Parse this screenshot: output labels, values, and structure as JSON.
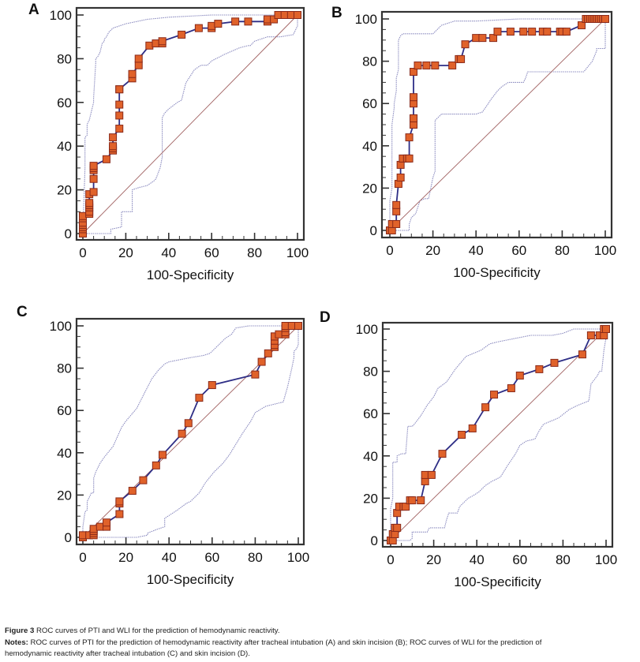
{
  "figure": {
    "caption_label": "Figure 3",
    "caption_title": "ROC curves of PTI and WLI for the prediction of hemodynamic reactivity.",
    "notes_label": "Notes:",
    "notes_line1": "ROC curves of PTI for the prediction of hemodynamic reactivity after tracheal intubation (A) and skin incision (B); ROC curves of WLI for the prediction of",
    "notes_line2": "hemodynamic reactivity after tracheal intubation (C) and skin incision (D)."
  },
  "colors": {
    "roc_line": "#2e2e86",
    "marker_fill": "#e0622a",
    "marker_stroke": "#8a2a1a",
    "ci_line": "#8c8cc0",
    "diagonal": "#a06060",
    "frame": "#333333"
  },
  "chart_data": [
    {
      "panel": "A",
      "type": "line",
      "title": "",
      "xlabel": "100-Specificity",
      "ylabel": "",
      "xlim": [
        0,
        100
      ],
      "ylim": [
        0,
        100
      ],
      "xticks": [
        "0",
        "20",
        "40",
        "60",
        "80",
        "100"
      ],
      "yticks": [
        "0",
        "20",
        "40",
        "60",
        "80",
        "100"
      ],
      "grid": false,
      "series": [
        {
          "name": "ROC",
          "x": [
            0,
            0,
            0,
            0,
            0,
            0,
            0,
            3,
            3,
            3,
            3,
            3,
            3,
            5,
            5,
            5,
            5,
            5,
            11,
            14,
            14,
            14,
            14,
            17,
            17,
            17,
            17,
            17,
            23,
            23,
            26,
            26,
            31,
            34,
            37,
            37,
            46,
            54,
            60,
            60,
            63,
            71,
            77,
            86,
            86,
            89,
            91,
            94,
            97,
            100
          ],
          "y": [
            0,
            2,
            3,
            4,
            5,
            7,
            8,
            9,
            10,
            12,
            13,
            14,
            18,
            19,
            25,
            29,
            30,
            31,
            34,
            38,
            39,
            40,
            44,
            48,
            54,
            59,
            66,
            66,
            71,
            73,
            77,
            80,
            86,
            87,
            87,
            88,
            91,
            94,
            94,
            95,
            96,
            97,
            97,
            97,
            98,
            98,
            100,
            100,
            100,
            100
          ]
        },
        {
          "name": "CI upper",
          "x": [
            0,
            1,
            1,
            2,
            2,
            3,
            4,
            5,
            5,
            6,
            6,
            7,
            8,
            9,
            10,
            10,
            11,
            12,
            14,
            17,
            20,
            25,
            30,
            40,
            60,
            80,
            100
          ],
          "y": [
            0,
            30,
            44,
            45,
            50,
            52,
            56,
            60,
            62,
            78,
            80,
            81,
            83,
            87,
            88,
            89,
            90,
            92,
            94,
            95,
            96,
            97,
            98,
            99,
            100,
            100,
            100
          ]
        },
        {
          "name": "CI lower",
          "x": [
            0,
            13,
            13,
            18,
            18,
            23,
            23,
            26,
            30,
            33,
            34,
            36,
            37,
            37,
            38,
            40,
            44,
            46,
            47,
            48,
            50,
            52,
            55,
            58,
            60,
            66,
            73,
            77,
            78,
            80,
            86,
            92,
            98,
            100,
            100
          ],
          "y": [
            0,
            0,
            2,
            3,
            10,
            10,
            20,
            21,
            22,
            24,
            25,
            30,
            35,
            53,
            55,
            57,
            60,
            61,
            65,
            69,
            72,
            75,
            77,
            77,
            79,
            82,
            85,
            86,
            86,
            88,
            90,
            90,
            91,
            95,
            100
          ]
        },
        {
          "name": "Diagonal",
          "x": [
            0,
            100
          ],
          "y": [
            0,
            100
          ]
        }
      ]
    },
    {
      "panel": "B",
      "type": "line",
      "title": "",
      "xlabel": "100-Specificity",
      "ylabel": "",
      "xlim": [
        0,
        100
      ],
      "ylim": [
        0,
        100
      ],
      "xticks": [
        "0",
        "20",
        "40",
        "60",
        "80",
        "100"
      ],
      "yticks": [
        "0",
        "20",
        "40",
        "60",
        "80",
        "100"
      ],
      "grid": false,
      "series": [
        {
          "name": "ROC",
          "x": [
            0,
            1,
            1,
            3,
            3,
            3,
            4,
            5,
            5,
            6,
            8,
            9,
            9,
            11,
            11,
            11,
            11,
            11,
            11,
            13,
            17,
            21,
            29,
            32,
            33,
            35,
            40,
            43,
            48,
            50,
            56,
            62,
            66,
            71,
            73,
            79,
            80,
            82,
            89,
            91,
            92,
            93,
            94,
            95,
            96,
            97,
            98,
            99,
            100
          ],
          "y": [
            0,
            0,
            3,
            3,
            9,
            12,
            22,
            25,
            31,
            34,
            34,
            34,
            44,
            50,
            53,
            53,
            60,
            63,
            75,
            78,
            78,
            78,
            78,
            81,
            81,
            88,
            91,
            91,
            91,
            94,
            94,
            94,
            94,
            94,
            94,
            94,
            94,
            94,
            97,
            100,
            100,
            100,
            100,
            100,
            100,
            100,
            100,
            100,
            100
          ]
        },
        {
          "name": "CI upper",
          "x": [
            0,
            0,
            1,
            1,
            1,
            2,
            2,
            3,
            3,
            4,
            4,
            5,
            5,
            6,
            9,
            10,
            12,
            14,
            20,
            22,
            24,
            27,
            30,
            35,
            40,
            60,
            80,
            100
          ],
          "y": [
            0,
            14,
            20,
            44,
            50,
            58,
            60,
            66,
            72,
            76,
            90,
            92,
            92,
            93,
            93,
            93,
            93,
            93,
            93,
            95,
            97,
            98,
            99,
            99,
            99,
            100,
            100,
            100
          ]
        },
        {
          "name": "CI lower",
          "x": [
            0,
            9,
            9,
            10,
            11,
            12,
            14,
            16,
            18,
            19,
            20,
            21,
            21,
            24,
            40,
            43,
            45,
            47,
            50,
            52,
            55,
            60,
            62,
            63,
            64,
            66,
            70,
            75,
            78,
            80,
            82,
            90,
            94,
            96,
            96,
            100,
            100
          ],
          "y": [
            0,
            0,
            3,
            6,
            7,
            8,
            14,
            15,
            15,
            20,
            25,
            28,
            52,
            55,
            55,
            56,
            59,
            62,
            66,
            68,
            70,
            70,
            70,
            72,
            75,
            75,
            75,
            75,
            75,
            75,
            75,
            75,
            80,
            85,
            86,
            86,
            100
          ]
        },
        {
          "name": "Diagonal",
          "x": [
            0,
            100
          ],
          "y": [
            0,
            100
          ]
        }
      ]
    },
    {
      "panel": "C",
      "type": "line",
      "title": "",
      "xlabel": "100-Specificity",
      "ylabel": "",
      "xlim": [
        0,
        100
      ],
      "ylim": [
        0,
        100
      ],
      "xticks": [
        "0",
        "20",
        "40",
        "60",
        "80",
        "100"
      ],
      "yticks": [
        "0",
        "20",
        "40",
        "60",
        "80",
        "100"
      ],
      "grid": false,
      "series": [
        {
          "name": "ROC",
          "x": [
            0,
            0,
            3,
            5,
            5,
            5,
            5,
            8,
            11,
            11,
            17,
            17,
            17,
            23,
            28,
            34,
            37,
            46,
            49,
            54,
            60,
            80,
            83,
            86,
            89,
            89,
            89,
            89,
            89,
            91,
            94,
            94,
            94,
            94,
            97,
            100
          ],
          "y": [
            0,
            1,
            1,
            1,
            2,
            3,
            4,
            5,
            5,
            7,
            11,
            16,
            17,
            22,
            27,
            34,
            39,
            49,
            54,
            66,
            72,
            77,
            83,
            87,
            90,
            91,
            93,
            95,
            95,
            96,
            96,
            97,
            99,
            100,
            100,
            100
          ]
        },
        {
          "name": "CI upper",
          "x": [
            0,
            0,
            1,
            2,
            2,
            4,
            5,
            5,
            6,
            8,
            10,
            14,
            18,
            20,
            25,
            28,
            32,
            35,
            38,
            40,
            45,
            50,
            56,
            59,
            62,
            66,
            69,
            71,
            77,
            80,
            90,
            100
          ],
          "y": [
            0,
            5,
            12,
            13,
            17,
            21,
            21,
            28,
            31,
            35,
            38,
            43,
            52,
            55,
            61,
            67,
            75,
            79,
            82,
            83,
            84,
            85,
            86,
            87,
            90,
            94,
            96,
            99,
            100,
            100,
            100,
            100
          ]
        },
        {
          "name": "CI lower",
          "x": [
            0,
            10,
            20,
            25,
            30,
            30,
            35,
            38,
            38,
            44,
            48,
            50,
            54,
            57,
            61,
            65,
            68,
            71,
            74,
            78,
            80,
            85,
            93,
            95,
            97,
            98,
            98,
            99,
            100,
            100
          ],
          "y": [
            0,
            0,
            0,
            0,
            1,
            2,
            4,
            5,
            9,
            13,
            16,
            17,
            21,
            26,
            31,
            35,
            39,
            44,
            49,
            55,
            59,
            62,
            64,
            71,
            80,
            85,
            88,
            89,
            91,
            100
          ]
        },
        {
          "name": "Diagonal",
          "x": [
            0,
            100
          ],
          "y": [
            0,
            100
          ]
        }
      ]
    },
    {
      "panel": "D",
      "type": "line",
      "title": "",
      "xlabel": "100-Specificity",
      "ylabel": "",
      "xlim": [
        0,
        100
      ],
      "ylim": [
        0,
        100
      ],
      "xticks": [
        "0",
        "20",
        "40",
        "60",
        "80",
        "100"
      ],
      "yticks": [
        "0",
        "20",
        "40",
        "60",
        "80",
        "100"
      ],
      "grid": false,
      "series": [
        {
          "name": "ROC",
          "x": [
            0,
            1,
            1,
            2,
            2,
            3,
            3,
            4,
            6,
            7,
            9,
            10,
            14,
            16,
            16,
            19,
            24,
            33,
            38,
            44,
            48,
            56,
            60,
            69,
            76,
            89,
            93,
            97,
            99,
            99,
            100
          ],
          "y": [
            0,
            0,
            3,
            3,
            6,
            6,
            13,
            16,
            16,
            16,
            19,
            19,
            19,
            28,
            31,
            31,
            41,
            50,
            53,
            63,
            69,
            72,
            78,
            81,
            84,
            88,
            97,
            97,
            97,
            100,
            100
          ]
        },
        {
          "name": "CI upper",
          "x": [
            0,
            0,
            1,
            1,
            2,
            3,
            3,
            5,
            7,
            7,
            8,
            10,
            11,
            14,
            17,
            20,
            22,
            26,
            30,
            35,
            42,
            46,
            50,
            55,
            60,
            65,
            70,
            75,
            80,
            85,
            90,
            100
          ],
          "y": [
            0,
            15,
            20,
            37,
            37,
            37,
            40,
            41,
            41,
            41,
            54,
            54,
            55,
            59,
            64,
            68,
            72,
            75,
            81,
            87,
            90,
            93,
            94,
            95,
            96,
            97,
            97,
            97,
            98,
            100,
            100,
            100
          ]
        },
        {
          "name": "CI lower",
          "x": [
            0,
            5,
            9,
            10,
            10,
            17,
            18,
            20,
            22,
            25,
            26,
            27,
            28,
            31,
            32,
            36,
            38,
            41,
            44,
            47,
            51,
            54,
            58,
            60,
            63,
            67,
            69,
            71,
            78,
            83,
            87,
            92,
            93,
            96,
            97,
            98,
            99,
            100,
            100
          ],
          "y": [
            0,
            0,
            0,
            1,
            4,
            4,
            6,
            6,
            6,
            6,
            10,
            13,
            13,
            13,
            16,
            20,
            21,
            23,
            26,
            28,
            30,
            35,
            41,
            45,
            47,
            48,
            52,
            55,
            58,
            62,
            64,
            66,
            74,
            78,
            80,
            80,
            90,
            96,
            100
          ]
        },
        {
          "name": "Diagonal",
          "x": [
            0,
            100
          ],
          "y": [
            0,
            100
          ]
        }
      ]
    }
  ]
}
